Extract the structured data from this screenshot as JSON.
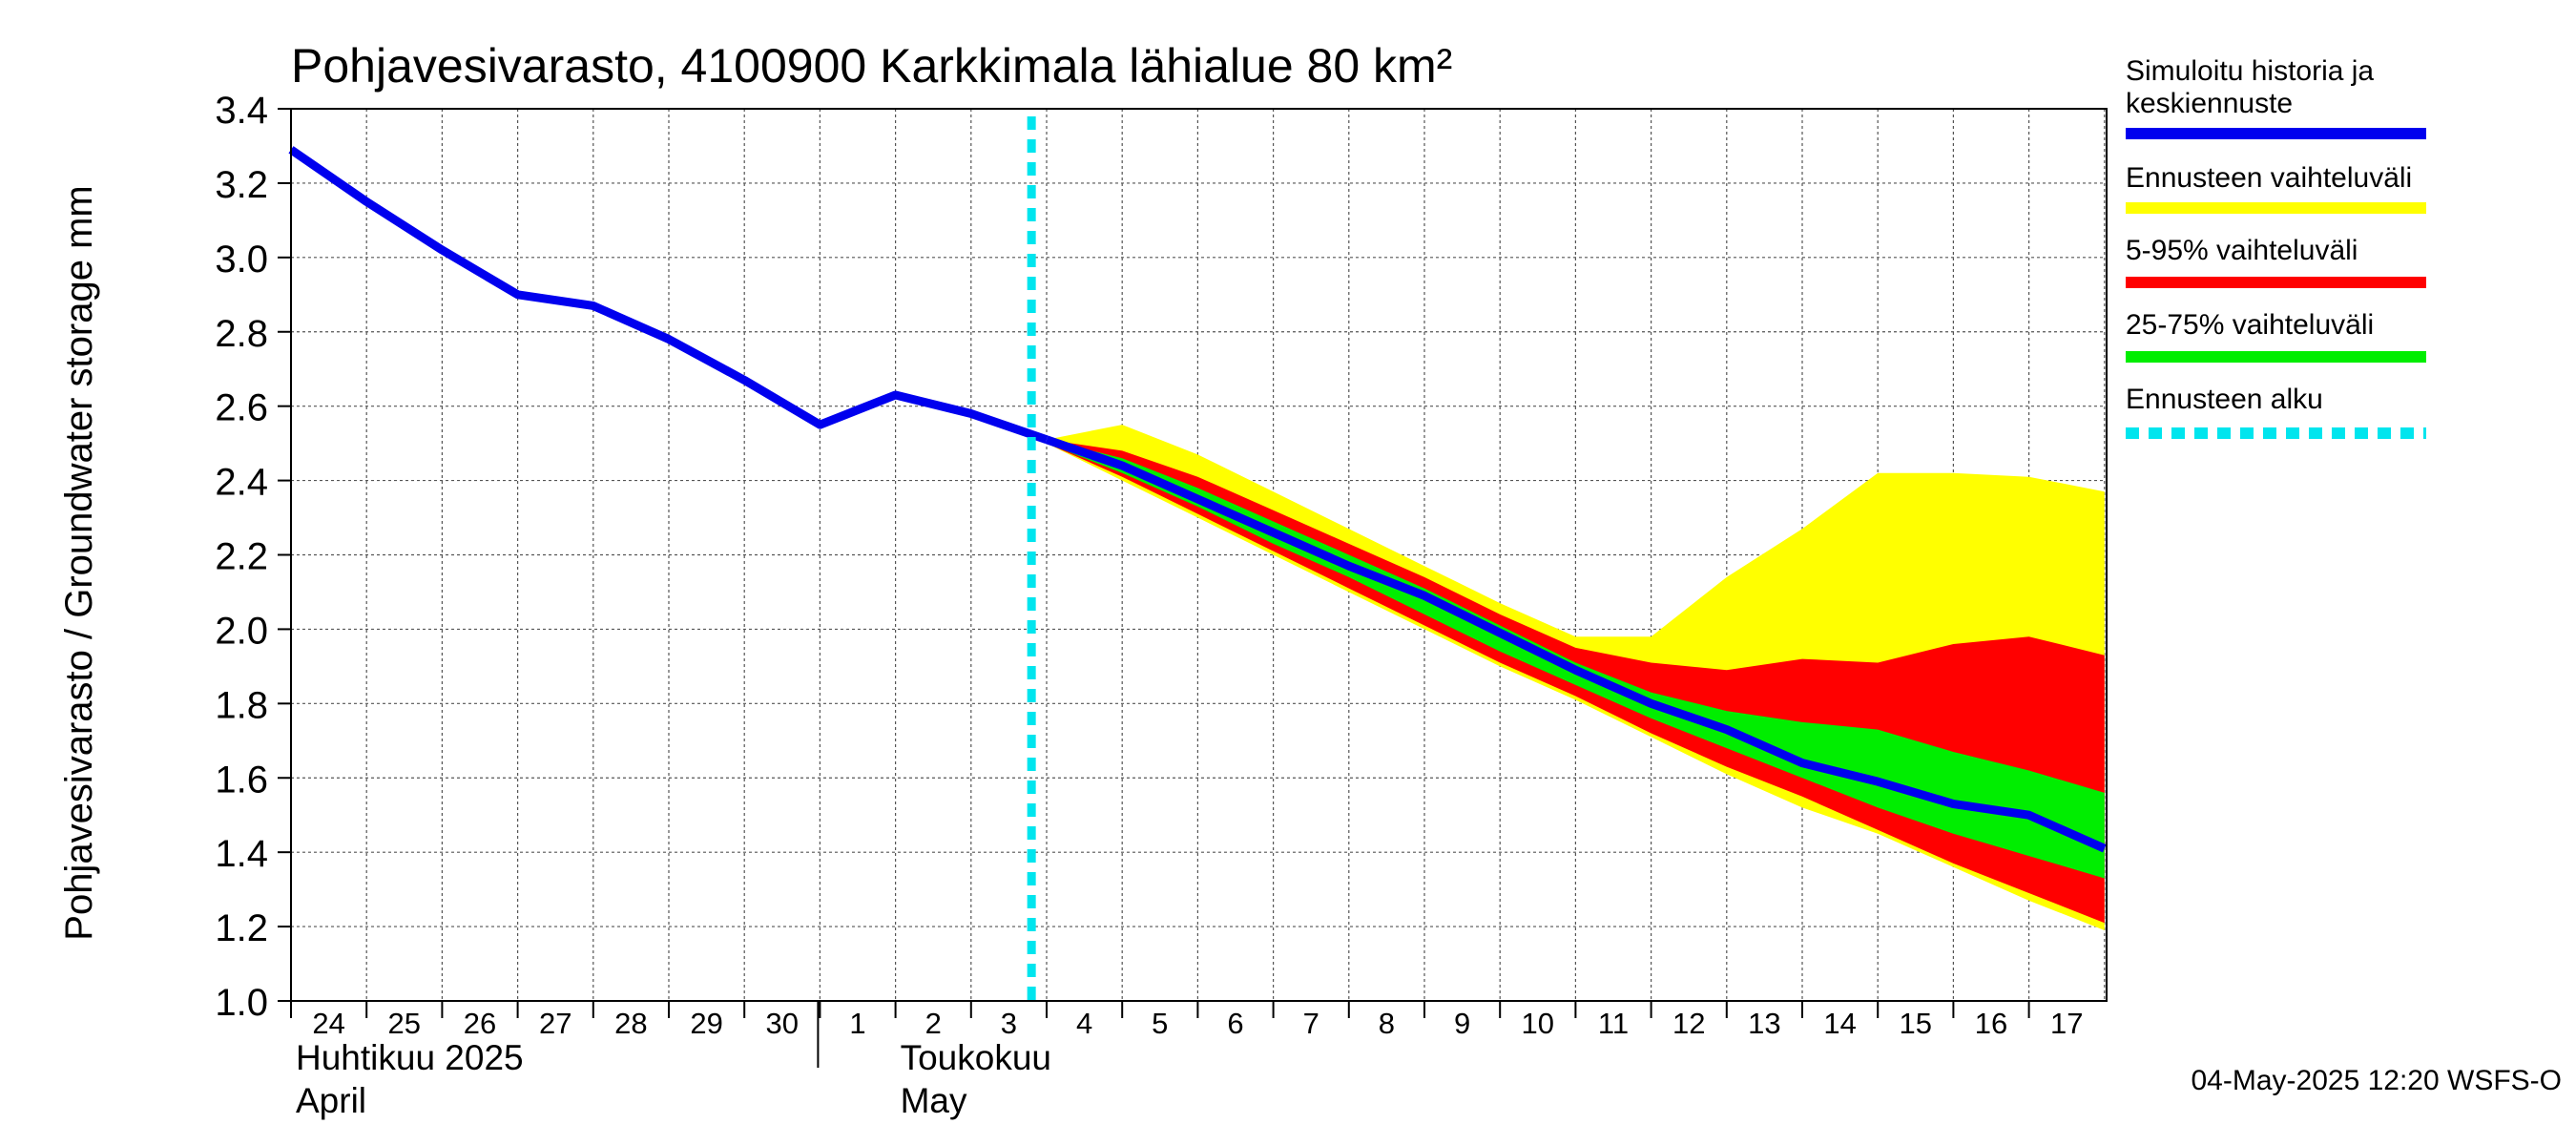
{
  "chart_data": {
    "type": "area",
    "title": "Pohjavesivarasto, 4100900 Karkkimala lähialue 80 km²",
    "ylabel": "Pohjavesivarasto / Groundwater storage   mm",
    "ylim": [
      1.0,
      3.4
    ],
    "yticks": [
      "1.0",
      "1.2",
      "1.4",
      "1.6",
      "1.8",
      "2.0",
      "2.2",
      "2.4",
      "2.6",
      "2.8",
      "3.0",
      "3.2",
      "3.4"
    ],
    "x_day_labels": [
      "24",
      "25",
      "26",
      "27",
      "28",
      "29",
      "30",
      "1",
      "2",
      "3",
      "4",
      "5",
      "6",
      "7",
      "8",
      "9",
      "10",
      "11",
      "12",
      "13",
      "14",
      "15",
      "16",
      "17"
    ],
    "month_labels": [
      {
        "line1": "Huhtikuu  2025",
        "line2": "April",
        "day_index": 0
      },
      {
        "line1": "Toukokuu",
        "line2": "May",
        "day_index": 8
      }
    ],
    "forecast_start_day_index": 9.8,
    "history": {
      "x": [
        0,
        1,
        2,
        3,
        4,
        5,
        6,
        7,
        8,
        9,
        10
      ],
      "values": [
        3.29,
        3.15,
        3.02,
        2.9,
        2.87,
        2.78,
        2.67,
        2.55,
        2.63,
        2.58,
        2.51
      ]
    },
    "forecast_x": [
      10,
      11,
      12,
      13,
      14,
      15,
      16,
      17,
      18,
      19,
      20,
      21,
      22,
      23,
      24
    ],
    "series": [
      {
        "name": "Ennusteen vaihteluväli",
        "color": "#ffff00",
        "upper": [
          2.51,
          2.55,
          2.47,
          2.37,
          2.27,
          2.17,
          2.07,
          1.98,
          1.98,
          2.14,
          2.27,
          2.42,
          2.42,
          2.41,
          2.37
        ],
        "lower": [
          2.5,
          2.4,
          2.3,
          2.2,
          2.1,
          2.0,
          1.9,
          1.81,
          1.71,
          1.61,
          1.52,
          1.45,
          1.36,
          1.27,
          1.19
        ]
      },
      {
        "name": "5-95% vaihteluväli",
        "color": "#ff0000",
        "upper": [
          2.51,
          2.48,
          2.41,
          2.32,
          2.23,
          2.14,
          2.04,
          1.95,
          1.91,
          1.89,
          1.92,
          1.91,
          1.96,
          1.98,
          1.93
        ],
        "lower": [
          2.5,
          2.41,
          2.31,
          2.21,
          2.11,
          2.01,
          1.91,
          1.82,
          1.72,
          1.63,
          1.55,
          1.46,
          1.37,
          1.29,
          1.21
        ]
      },
      {
        "name": "25-75% vaihteluväli",
        "color": "#00ee00",
        "upper": [
          2.51,
          2.46,
          2.38,
          2.29,
          2.2,
          2.11,
          2.01,
          1.91,
          1.83,
          1.78,
          1.75,
          1.73,
          1.67,
          1.62,
          1.56
        ]
      },
      {
        "name": "Simuloitu historia ja keskiennuste",
        "color": "#0000ee",
        "values": [
          2.51,
          2.44,
          2.35,
          2.26,
          2.17,
          2.09,
          1.99,
          1.89,
          1.8,
          1.73,
          1.64,
          1.59,
          1.53,
          1.5,
          1.41
        ]
      }
    ],
    "green_lower": [
      2.5,
      2.42,
      2.33,
      2.23,
      2.14,
      2.04,
      1.94,
      1.85,
      1.76,
      1.68,
      1.6,
      1.52,
      1.45,
      1.39,
      1.33
    ],
    "legend": [
      {
        "label": "Simuloitu historia ja keskiennuste",
        "color": "#0000ee",
        "style": "solid"
      },
      {
        "label": "Ennusteen vaihteluväli",
        "color": "#ffff00",
        "style": "solid"
      },
      {
        "label": "5-95% vaihteluväli",
        "color": "#ff0000",
        "style": "solid"
      },
      {
        "label": "25-75% vaihteluväli",
        "color": "#00ee00",
        "style": "solid"
      },
      {
        "label": "Ennusteen alku",
        "color": "#00e5ee",
        "style": "dashed"
      }
    ],
    "legend_position": "right",
    "footer": "04-May-2025 12:20 WSFS-O",
    "grid": true
  }
}
